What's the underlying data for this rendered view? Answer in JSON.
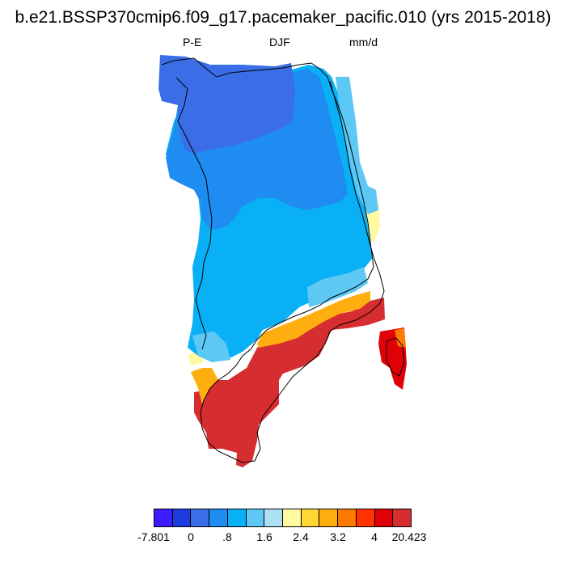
{
  "title": "b.e21.BSSP370cmip6.f09_g17.pacemaker_pacific.010 (yrs 2015-2018)",
  "subtitle": {
    "left": "P-E",
    "center": "DJF",
    "right": "mm/d"
  },
  "colorbar": {
    "colors": [
      "#3b1cff",
      "#1c3ce0",
      "#3b6ee6",
      "#1e8cf0",
      "#0ab0f5",
      "#5ec8f5",
      "#aee0f5",
      "#fff9a0",
      "#ffd633",
      "#ffae10",
      "#ff7a00",
      "#ff3300",
      "#e00008",
      "#d62e30"
    ],
    "labels": [
      "-7.801",
      "0",
      ".8",
      "1.6",
      "2.4",
      "3.2",
      "4",
      "20.423"
    ]
  }
}
